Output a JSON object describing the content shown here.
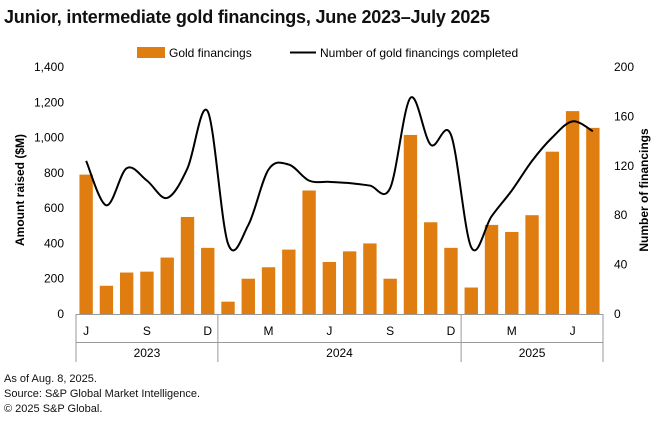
{
  "title": "Junior, intermediate gold financings, June 2023–July 2025",
  "notes": [
    "As of Aug. 8, 2025.",
    "Source: S&P Global Market Intelligence.",
    "© 2025 S&P Global."
  ],
  "colors": {
    "bar": "#E07D10",
    "line": "#000000",
    "axis": "#999999"
  },
  "chart_data": {
    "type": "bar",
    "title": "Junior, intermediate gold financings, June 2023–July 2025",
    "categories": [
      "2023-06",
      "2023-07",
      "2023-08",
      "2023-09",
      "2023-10",
      "2023-11",
      "2023-12",
      "2024-01",
      "2024-02",
      "2024-03",
      "2024-04",
      "2024-05",
      "2024-06",
      "2024-07",
      "2024-08",
      "2024-09",
      "2024-10",
      "2024-11",
      "2024-12",
      "2025-01",
      "2025-02",
      "2025-03",
      "2025-04",
      "2025-05",
      "2025-06",
      "2025-07"
    ],
    "month_labels": [
      "J",
      "",
      "",
      "S",
      "",
      "",
      "D",
      "",
      "",
      "M",
      "",
      "",
      "J",
      "",
      "",
      "S",
      "",
      "",
      "D",
      "",
      "",
      "M",
      "",
      "",
      "J",
      ""
    ],
    "year_groups": [
      {
        "label": "2023",
        "start": 0,
        "end": 6
      },
      {
        "label": "2024",
        "start": 7,
        "end": 18
      },
      {
        "label": "2025",
        "start": 19,
        "end": 25
      }
    ],
    "series": [
      {
        "name": "Gold financings",
        "type": "bar",
        "axis": "left",
        "values": [
          790,
          160,
          235,
          240,
          320,
          550,
          375,
          70,
          200,
          265,
          365,
          700,
          295,
          355,
          400,
          200,
          1015,
          520,
          375,
          150,
          505,
          465,
          560,
          920,
          1150,
          1055
        ]
      },
      {
        "name": "Number of gold financings completed",
        "type": "line",
        "axis": "right",
        "values": [
          124,
          88,
          118,
          108,
          94,
          118,
          164,
          57,
          72,
          117,
          121,
          108,
          107,
          106,
          104,
          102,
          175,
          137,
          145,
          54,
          79,
          100,
          124,
          143,
          156,
          148
        ]
      }
    ],
    "ylabel": "Amount raised ($M)",
    "y2label": "Number of financings",
    "ylim": [
      0,
      1400
    ],
    "yticks": [
      "0",
      "200",
      "400",
      "600",
      "800",
      "1,000",
      "1,200",
      "1,400"
    ],
    "y2lim": [
      0,
      200
    ],
    "y2ticks": [
      "0",
      "40",
      "80",
      "120",
      "160",
      "200"
    ],
    "legend_position": "top",
    "grid": false
  }
}
